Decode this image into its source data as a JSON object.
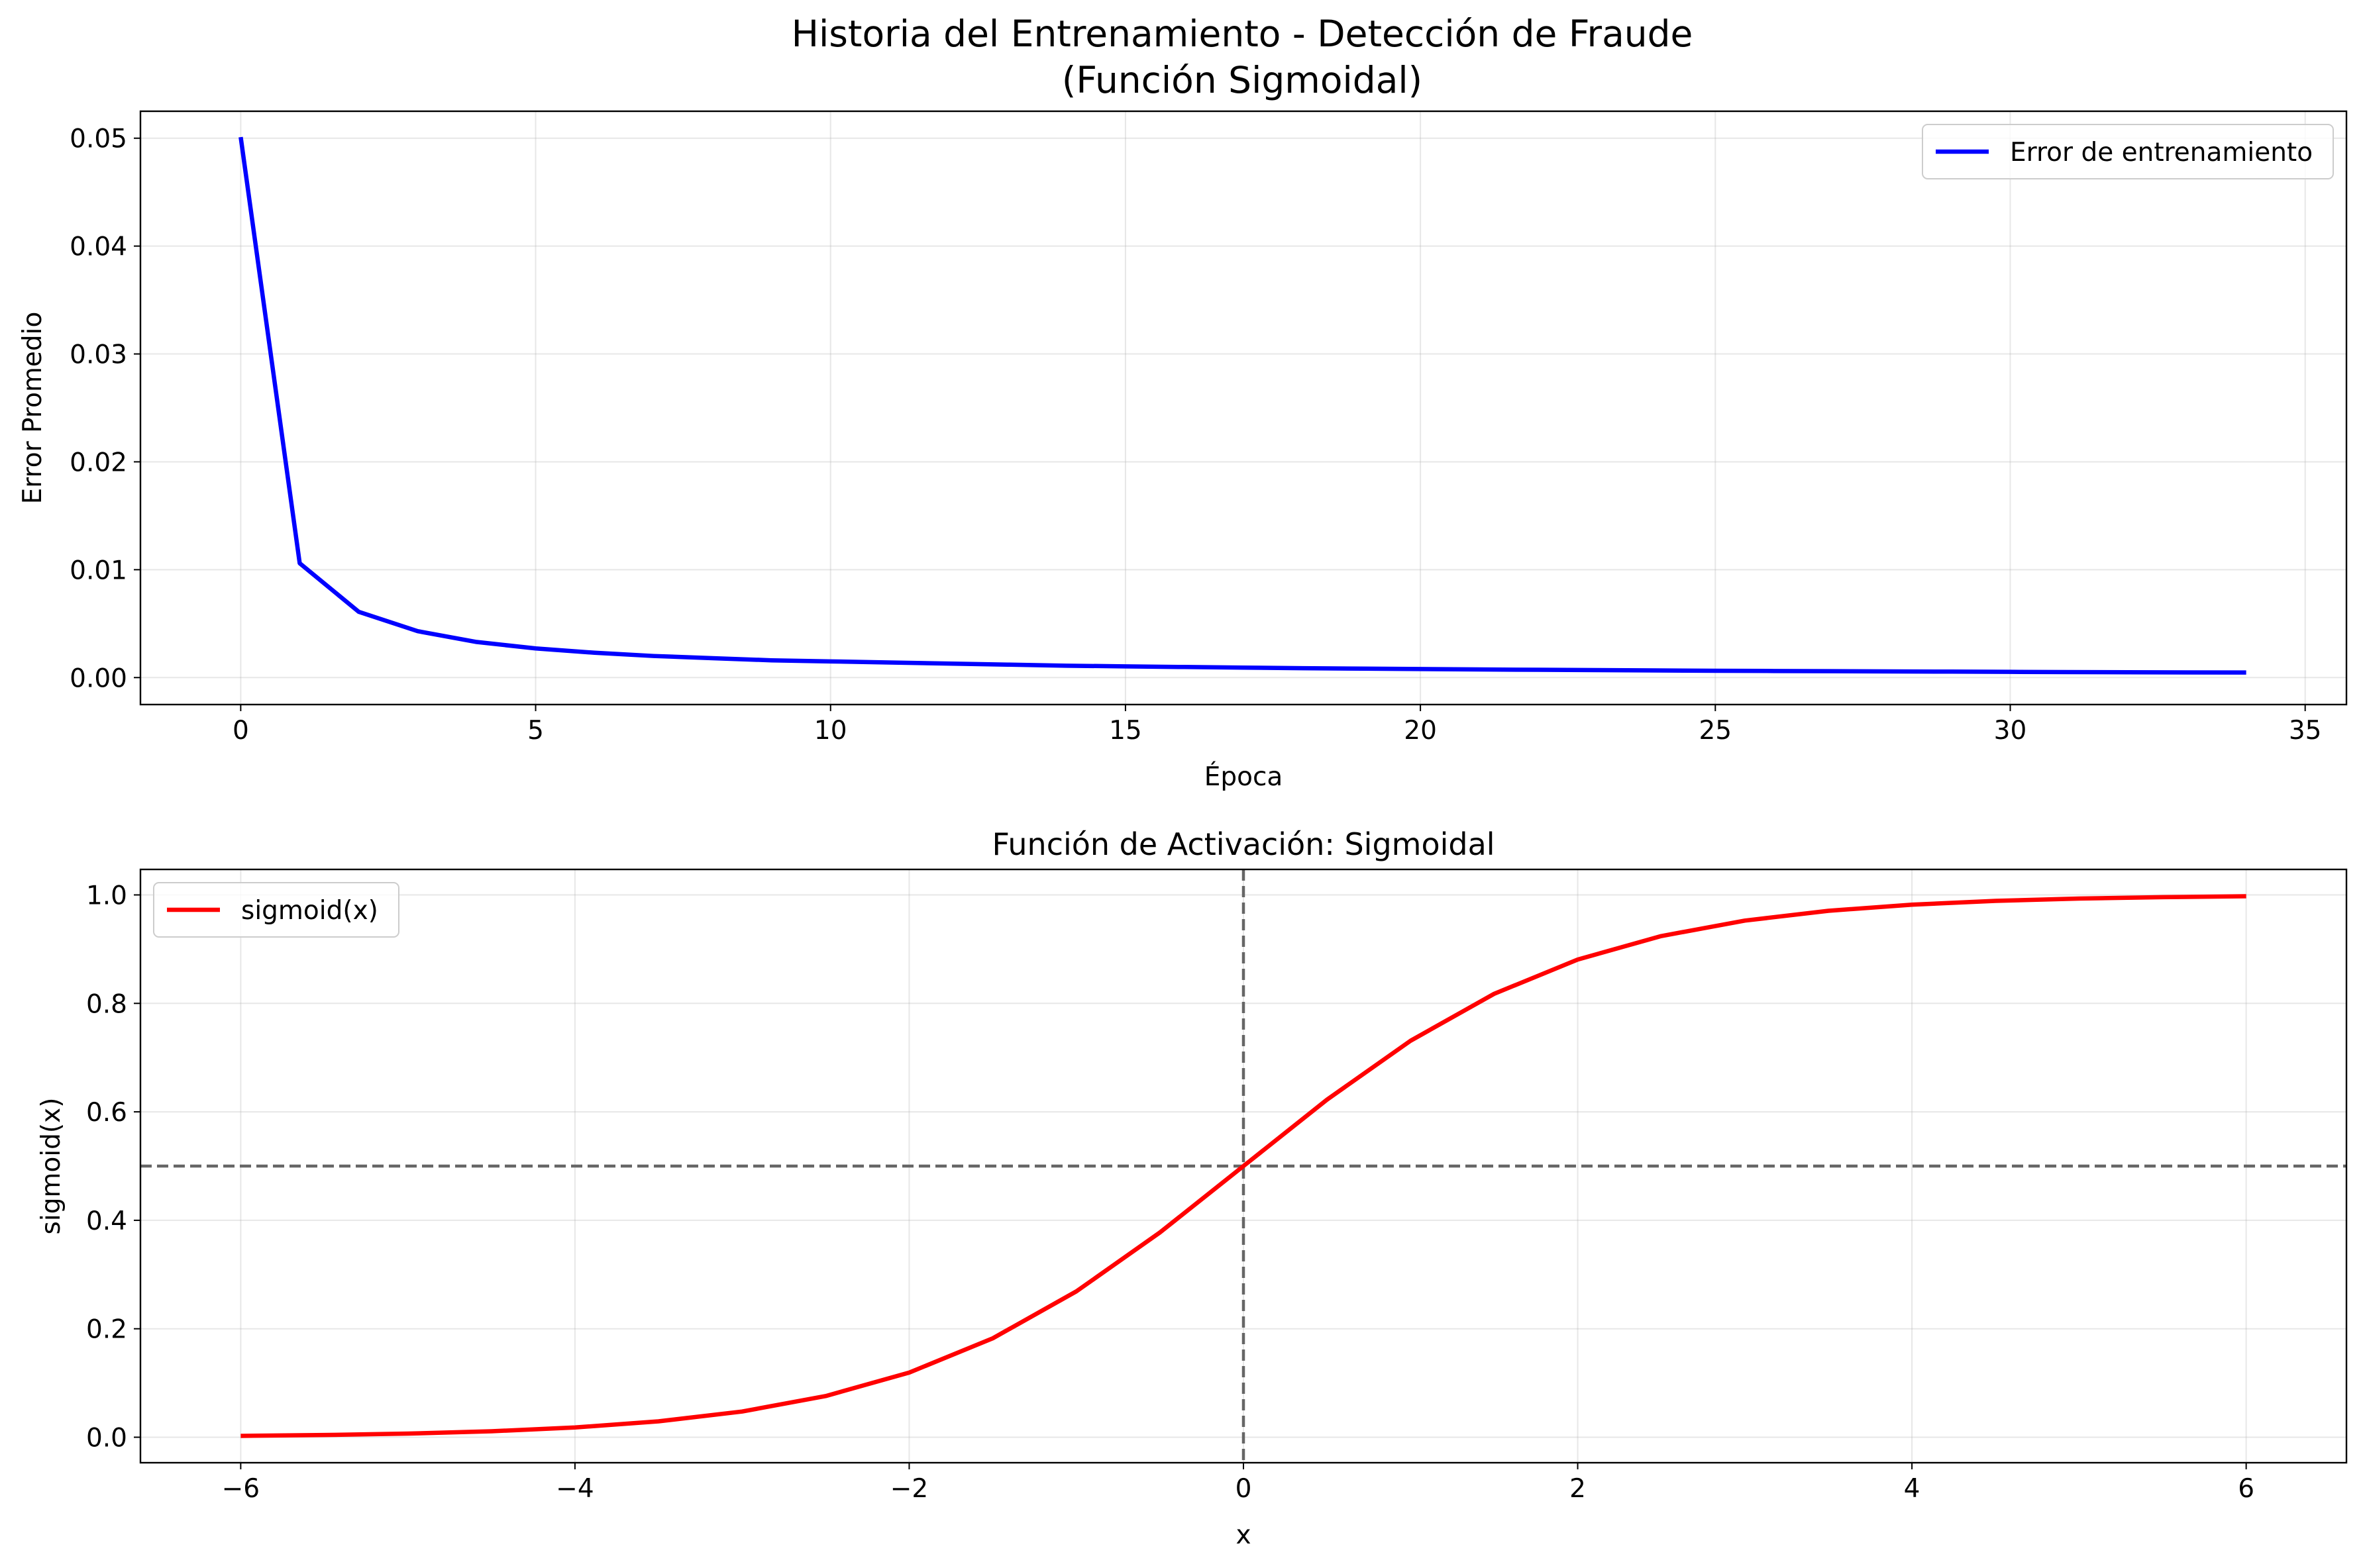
{
  "figure": {
    "title_line1": "Historia del Entrenamiento - Detección de Fraude",
    "title_line2": "(Función Sigmoidal)"
  },
  "chart_data": [
    {
      "type": "line",
      "title": "",
      "xlabel": "Época",
      "ylabel": "Error Promedio",
      "xlim": [
        -1.7,
        35.7
      ],
      "ylim": [
        -0.0025,
        0.0525
      ],
      "xticks": [
        0,
        5,
        10,
        15,
        20,
        25,
        30,
        35
      ],
      "yticks": [
        0.0,
        0.01,
        0.02,
        0.03,
        0.04,
        0.05
      ],
      "ytick_labels": [
        "0.00",
        "0.01",
        "0.02",
        "0.03",
        "0.04",
        "0.05"
      ],
      "grid": true,
      "legend": "upper right",
      "series": [
        {
          "name": "Error de entrenamiento",
          "color": "#0000ff",
          "x": [
            0,
            1,
            2,
            3,
            4,
            5,
            6,
            7,
            8,
            9,
            10,
            11,
            12,
            13,
            14,
            15,
            16,
            17,
            18,
            19,
            20,
            21,
            22,
            23,
            24,
            25,
            26,
            27,
            28,
            29,
            30,
            31,
            32,
            33,
            34
          ],
          "y": [
            0.0501,
            0.0106,
            0.0061,
            0.0043,
            0.0033,
            0.0027,
            0.0023,
            0.002,
            0.0018,
            0.0016,
            0.0015,
            0.0014,
            0.0013,
            0.0012,
            0.0011,
            0.00104,
            0.00098,
            0.00092,
            0.00087,
            0.00083,
            0.00079,
            0.00075,
            0.00072,
            0.00069,
            0.00066,
            0.00063,
            0.00061,
            0.00059,
            0.00057,
            0.00055,
            0.00053,
            0.00051,
            0.00049,
            0.00048,
            0.00047
          ]
        }
      ]
    },
    {
      "type": "line",
      "title": "Función de Activación: Sigmoidal",
      "xlabel": "x",
      "ylabel": "sigmoid(x)",
      "xlim": [
        -6.6,
        6.6
      ],
      "ylim": [
        -0.047,
        1.047
      ],
      "xticks": [
        -6,
        -4,
        -2,
        0,
        2,
        4,
        6
      ],
      "xtick_labels": [
        "−6",
        "−4",
        "−2",
        "0",
        "2",
        "4",
        "6"
      ],
      "yticks": [
        0.0,
        0.2,
        0.4,
        0.6,
        0.8,
        1.0
      ],
      "ytick_labels": [
        "0.0",
        "0.2",
        "0.4",
        "0.6",
        "0.8",
        "1.0"
      ],
      "grid": true,
      "legend": "upper left",
      "reference_lines": [
        {
          "orientation": "horizontal",
          "value": 0.5,
          "style": "dashed",
          "color": "#666666"
        },
        {
          "orientation": "vertical",
          "value": 0,
          "style": "dashed",
          "color": "#666666"
        }
      ],
      "series": [
        {
          "name": "sigmoid(x)",
          "color": "#ff0000",
          "x": [
            -6,
            -5.5,
            -5,
            -4.5,
            -4,
            -3.5,
            -3,
            -2.5,
            -2,
            -1.5,
            -1,
            -0.5,
            0,
            0.5,
            1,
            1.5,
            2,
            2.5,
            3,
            3.5,
            4,
            4.5,
            5,
            5.5,
            6
          ],
          "y": [
            0.0025,
            0.0041,
            0.0067,
            0.011,
            0.018,
            0.0293,
            0.0474,
            0.0759,
            0.1192,
            0.1824,
            0.2689,
            0.3775,
            0.5,
            0.6225,
            0.7311,
            0.8176,
            0.8808,
            0.9241,
            0.9526,
            0.9707,
            0.982,
            0.989,
            0.9933,
            0.9959,
            0.9975
          ]
        }
      ]
    }
  ]
}
